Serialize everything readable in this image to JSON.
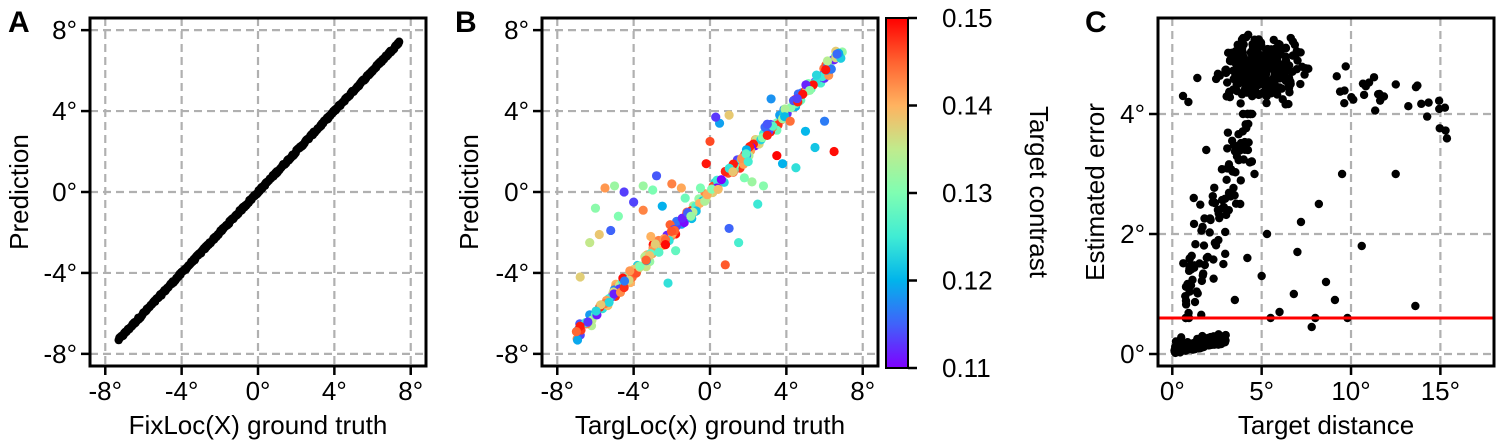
{
  "panels": {
    "a": {
      "letter": "A"
    },
    "b": {
      "letter": "B"
    },
    "c": {
      "letter": "C"
    }
  },
  "colors": {
    "points": "#000000",
    "grid": "#b0b0b0",
    "threshold_line": "#ff0000",
    "colormap": [
      "#7f00ff",
      "#4062fa",
      "#01b4eb",
      "#40ecd4",
      "#7ffeb2",
      "#c0eb8d",
      "#ffb360",
      "#ff6230",
      "#ff0000"
    ]
  },
  "chart_data": [
    {
      "type": "scatter",
      "panel": "A",
      "title": "",
      "xlabel": "FixLoc(X) ground truth",
      "ylabel": "Prediction",
      "xlim": [
        -8.8,
        8.8
      ],
      "ylim": [
        -8.6,
        8.6
      ],
      "xticks": [
        -8,
        -4,
        0,
        4,
        8
      ],
      "yticks": [
        -8,
        -4,
        0,
        4,
        8
      ],
      "xtick_labels": [
        "-8°",
        "-4°",
        "0°",
        "4°",
        "8°"
      ],
      "ytick_labels": [
        "-8°",
        "-4°",
        "0°",
        "4°",
        "8°"
      ],
      "grid": true,
      "series": [
        {
          "x_range": [
            -7.3,
            7.4
          ],
          "relation": "y = x",
          "count": 400
        }
      ]
    },
    {
      "type": "scatter",
      "panel": "B",
      "title": "",
      "xlabel": "TargLoc(x) ground truth",
      "ylabel": "Prediction",
      "xlim": [
        -8.8,
        8.8
      ],
      "ylim": [
        -8.6,
        8.6
      ],
      "xticks": [
        -8,
        -4,
        0,
        4,
        8
      ],
      "yticks": [
        -8,
        -4,
        0,
        4,
        8
      ],
      "xtick_labels": [
        "-8°",
        "-4°",
        "0°",
        "4°",
        "8°"
      ],
      "ytick_labels": [
        "-8°",
        "-4°",
        "0°",
        "4°",
        "8°"
      ],
      "grid": true,
      "colorbar": {
        "label": "Target contrast",
        "range": [
          0.11,
          0.15
        ],
        "ticks": [
          "0.11",
          "0.12",
          "0.13",
          "0.14",
          "0.15"
        ]
      },
      "series": [
        {
          "on_diagonal_count": 260,
          "x_range": [
            -7.0,
            7.0
          ],
          "outliers": [
            [
              -6,
              -0.8
            ],
            [
              -5.5,
              0.2
            ],
            [
              -5,
              0.3
            ],
            [
              -4.5,
              0
            ],
            [
              -4,
              -0.5
            ],
            [
              -3.5,
              0.3
            ],
            [
              -3,
              0.1
            ],
            [
              -2.5,
              -0.7
            ],
            [
              -2,
              0.4
            ],
            [
              -1.5,
              0.2
            ],
            [
              -5.8,
              -2.1
            ],
            [
              -4.2,
              -3.9
            ],
            [
              -3.1,
              -2.2
            ],
            [
              -2.2,
              -4.5
            ],
            [
              -1.0,
              -1.2
            ],
            [
              0,
              2.5
            ],
            [
              0.5,
              3.4
            ],
            [
              1.0,
              3.8
            ],
            [
              2,
              1.5
            ],
            [
              3,
              2.8
            ],
            [
              3.2,
              4.6
            ],
            [
              4.2,
              3.5
            ],
            [
              4.5,
              1.2
            ],
            [
              5.5,
              2.2
            ],
            [
              6,
              3.5
            ],
            [
              6.5,
              2.0
            ],
            [
              -0.5,
              0.2
            ],
            [
              1.5,
              -2.5
            ],
            [
              1,
              -1.8
            ],
            [
              2.5,
              -0.6
            ],
            [
              2.8,
              0.3
            ],
            [
              3.5,
              1.8
            ],
            [
              -2.8,
              0.8
            ],
            [
              -4.8,
              -1.2
            ],
            [
              -6.3,
              -2.5
            ],
            [
              -6.8,
              -4.2
            ],
            [
              0.3,
              3.7
            ],
            [
              1.2,
              1.0
            ],
            [
              2.2,
              0.5
            ],
            [
              0.8,
              -3.6
            ],
            [
              -3.5,
              -0.9
            ],
            [
              -1.8,
              -2.9
            ],
            [
              1.8,
              0.7
            ],
            [
              3.8,
              1.4
            ],
            [
              5.0,
              3.0
            ],
            [
              -0.2,
              1.4
            ],
            [
              -1.3,
              -0.3
            ],
            [
              -5.2,
              -1.9
            ]
          ]
        }
      ]
    },
    {
      "type": "scatter",
      "panel": "C",
      "title": "",
      "xlabel": "Target distance",
      "ylabel": "Estimated error",
      "xlim": [
        -0.8,
        18.0
      ],
      "ylim": [
        -0.2,
        5.6
      ],
      "xticks": [
        0,
        5,
        10,
        15
      ],
      "yticks": [
        0,
        2,
        4
      ],
      "xtick_labels": [
        "0°",
        "5°",
        "10°",
        "15°"
      ],
      "ytick_labels": [
        "0°",
        "2°",
        "4°"
      ],
      "grid": true,
      "threshold": 0.6,
      "series": [
        {
          "clusters": [
            {
              "x": [
                0.1,
                3.0
              ],
              "y": [
                0.0,
                0.6
              ],
              "count": 150
            },
            {
              "x": [
                2.0,
                9.0
              ],
              "y": [
                4.0,
                5.4
              ],
              "count": 320
            },
            {
              "x": [
                0.5,
                4.5
              ],
              "y": [
                0.6,
                4.0
              ],
              "count": 110
            },
            {
              "x": [
                9.0,
                16.2
              ],
              "y": [
                3.2,
                4.9
              ],
              "count": 30
            }
          ],
          "sparse": [
            [
              0.6,
              4.3
            ],
            [
              0.9,
              4.2
            ],
            [
              1.4,
              4.6
            ],
            [
              1.2,
              2.6
            ],
            [
              1.9,
              3.4
            ],
            [
              3.8,
              2.5
            ],
            [
              4.6,
              3.0
            ],
            [
              5.0,
              1.3
            ],
            [
              5.5,
              0.6
            ],
            [
              6.0,
              0.7
            ],
            [
              7.0,
              1.7
            ],
            [
              8.2,
              2.5
            ],
            [
              8.6,
              1.2
            ],
            [
              9.1,
              0.9
            ],
            [
              10.6,
              1.8
            ],
            [
              9.8,
              0.6
            ],
            [
              12.5,
              3.0
            ],
            [
              13.6,
              0.8
            ],
            [
              7.8,
              0.45
            ],
            [
              6.8,
              1.0
            ],
            [
              5.3,
              2.0
            ],
            [
              4.2,
              1.6
            ],
            [
              3.5,
              0.9
            ],
            [
              8.0,
              0.6
            ],
            [
              7.2,
              2.2
            ],
            [
              9.5,
              3.0
            ]
          ]
        }
      ]
    }
  ]
}
